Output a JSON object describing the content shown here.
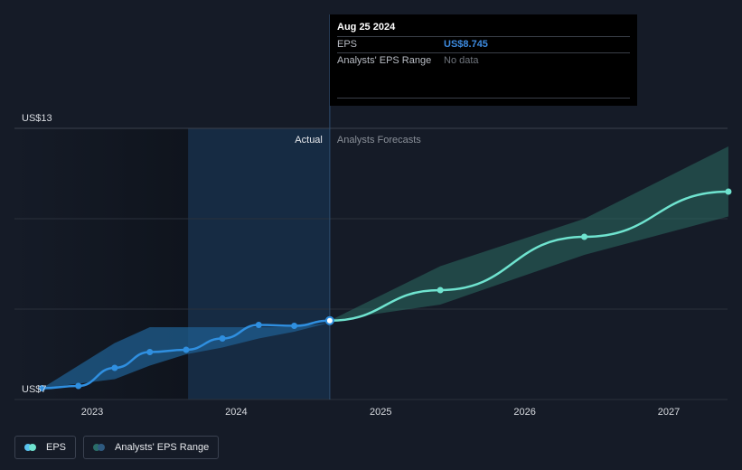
{
  "tooltip": {
    "date": "Aug 25 2024",
    "eps_label": "EPS",
    "eps_value": "US$8.745",
    "range_label": "Analysts' EPS Range",
    "range_value": "No data"
  },
  "legend": {
    "eps_label": "EPS",
    "range_label": "Analysts' EPS Range"
  },
  "colors": {
    "background": "#151b27",
    "eps_line": "#2f8fe0",
    "forecast_line": "#6fe3cf",
    "past_range": "#1f5d8f",
    "forecast_range": "#2c6b63",
    "highlight": "#17324e",
    "eps_dot_legend": "#59c3f0",
    "range_dot_legend": "#2a6d68"
  },
  "chart_data": {
    "type": "line",
    "title": "",
    "xlabel": "",
    "ylabel": "",
    "y_tick_labels": [
      "US$13",
      "US$7"
    ],
    "ylim": [
      7,
      13
    ],
    "x_ticks": [
      "2023",
      "2024",
      "2025",
      "2026",
      "2027"
    ],
    "xlim": [
      "2022-07-01",
      "2027-06-01"
    ],
    "grid": true,
    "region_labels": {
      "actual": "Actual",
      "forecast": "Analysts Forecasts"
    },
    "divider_date": "2024-08-25",
    "highlight_start": "2023-09-01",
    "series": [
      {
        "name": "EPS",
        "kind": "actual",
        "x": [
          "2022-08-27",
          "2022-11-27",
          "2023-02-27",
          "2023-05-27",
          "2023-08-27",
          "2023-11-27",
          "2024-02-27",
          "2024-05-27",
          "2024-08-25"
        ],
        "y": [
          7.25,
          7.3,
          7.7,
          8.05,
          8.1,
          8.35,
          8.65,
          8.63,
          8.745
        ]
      },
      {
        "name": "EPS",
        "kind": "forecast",
        "x": [
          "2024-08-25",
          "2025-06-01",
          "2026-06-01",
          "2027-06-01"
        ],
        "y": [
          8.745,
          9.42,
          10.6,
          11.6
        ]
      }
    ],
    "range_band_past": {
      "x": [
        "2022-08-27",
        "2023-02-27",
        "2023-05-27",
        "2023-08-27",
        "2023-11-27",
        "2024-02-27",
        "2024-05-27",
        "2024-08-25"
      ],
      "upper": [
        7.25,
        8.25,
        8.6,
        8.6,
        8.6,
        8.6,
        8.6,
        8.7
      ],
      "lower": [
        7.25,
        7.45,
        7.75,
        8.0,
        8.15,
        8.35,
        8.5,
        8.7
      ]
    },
    "range_band_forecast": {
      "x": [
        "2024-08-25",
        "2025-06-01",
        "2026-06-01",
        "2027-06-01"
      ],
      "upper": [
        8.745,
        9.95,
        11.0,
        12.6
      ],
      "lower": [
        8.745,
        9.1,
        10.2,
        11.05
      ]
    }
  }
}
